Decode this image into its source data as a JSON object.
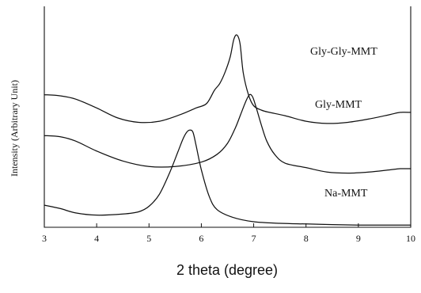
{
  "chart_data": {
    "type": "line",
    "title": "",
    "xlabel": "2 theta (degree)",
    "ylabel": "Intensity (Arbitrary Unit)",
    "xlim": [
      3,
      10
    ],
    "xticks": [
      "3",
      "4",
      "5",
      "6",
      "7",
      "8",
      "9",
      "10"
    ],
    "y_ticks_shown": false,
    "grid": false,
    "legend": "none",
    "series": [
      {
        "name": "Gly-Gly-MMT",
        "x": [
          3.0,
          3.3,
          3.6,
          4.0,
          4.4,
          4.8,
          5.2,
          5.6,
          5.9,
          6.1,
          6.25,
          6.35,
          6.45,
          6.55,
          6.62,
          6.68,
          6.74,
          6.8,
          6.9,
          7.0,
          7.15,
          7.3,
          7.6,
          8.0,
          8.4,
          8.8,
          9.2,
          9.6,
          9.8,
          10.0
        ],
        "y": [
          60,
          59.5,
          58,
          54,
          49.5,
          47.5,
          48,
          51,
          54,
          56,
          62,
          65,
          70,
          77,
          85,
          87,
          83,
          70,
          60,
          55,
          53,
          52,
          50.5,
          48,
          47,
          47.5,
          49,
          51,
          52,
          52
        ]
      },
      {
        "name": "Gly-MMT",
        "x": [
          3.0,
          3.3,
          3.6,
          4.0,
          4.5,
          5.0,
          5.5,
          6.0,
          6.3,
          6.5,
          6.65,
          6.75,
          6.85,
          6.92,
          6.98,
          7.05,
          7.15,
          7.25,
          7.4,
          7.6,
          8.0,
          8.4,
          8.8,
          9.2,
          9.6,
          9.8,
          10.0
        ],
        "y": [
          41.5,
          41,
          39,
          34.5,
          30,
          27.5,
          27.5,
          29.5,
          33,
          38,
          45,
          51,
          57,
          60,
          59,
          54,
          46,
          39,
          33,
          29,
          27,
          25,
          24.5,
          25,
          26,
          26.5,
          26.5
        ]
      },
      {
        "name": "Na-MMT",
        "x": [
          3.0,
          3.3,
          3.6,
          4.0,
          4.5,
          4.8,
          5.0,
          5.2,
          5.4,
          5.55,
          5.65,
          5.72,
          5.78,
          5.84,
          5.9,
          6.0,
          6.15,
          6.3,
          6.6,
          7.0,
          7.5,
          8.0,
          8.5,
          9.0,
          9.5,
          10.0
        ],
        "y": [
          10,
          8.5,
          6.5,
          5.5,
          6,
          7,
          9.5,
          15,
          25,
          34,
          40,
          43,
          44,
          43,
          37,
          26,
          14,
          8,
          4.5,
          2.5,
          1.8,
          1.5,
          1.2,
          1,
          1,
          1
        ]
      }
    ],
    "annotations": [
      {
        "text": "Gly-Gly-MMT",
        "series": 0
      },
      {
        "text": "Gly-MMT",
        "series": 1
      },
      {
        "text": "Na-MMT",
        "series": 2
      }
    ]
  }
}
